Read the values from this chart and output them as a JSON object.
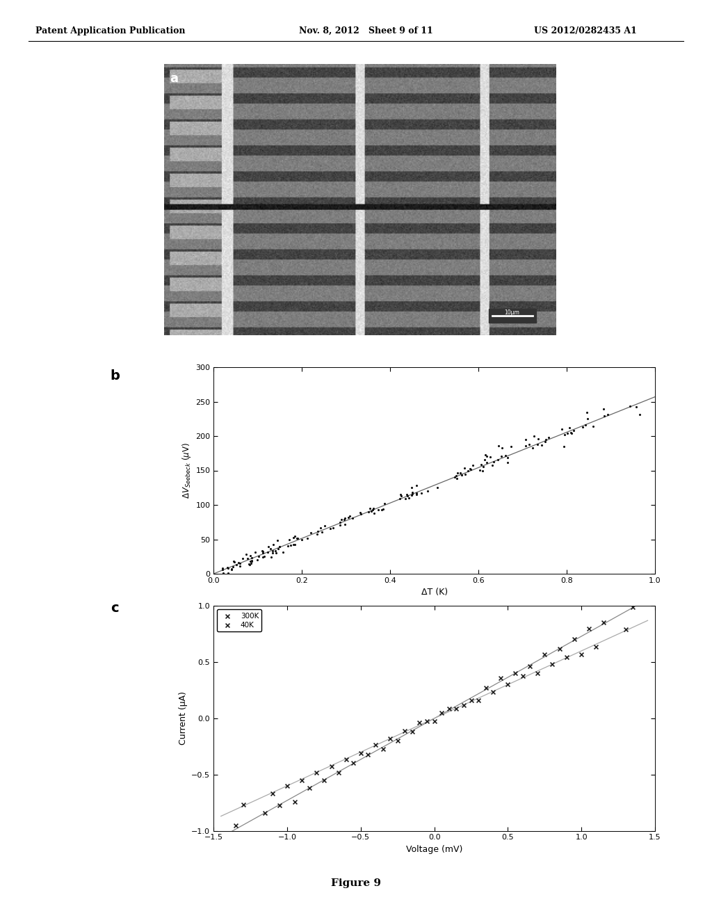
{
  "header_left": "Patent Application Publication",
  "header_mid": "Nov. 8, 2012   Sheet 9 of 11",
  "header_right": "US 2012/0282435 A1",
  "panel_a_label": "a",
  "panel_b_label": "b",
  "panel_c_label": "c",
  "figure_caption": "Figure 9",
  "plot_b": {
    "xlabel": "ΔT (K)",
    "ylabel": "ΔV$_{Seebeck}$ (μV)",
    "xlim": [
      0.0,
      1.0
    ],
    "ylim": [
      0,
      300
    ],
    "xticks": [
      0.0,
      0.2,
      0.4,
      0.6,
      0.8,
      1.0
    ],
    "yticks": [
      0,
      50,
      100,
      150,
      200,
      250,
      300
    ],
    "slope": 257,
    "scatter_color": "#111111",
    "line_color": "#666666"
  },
  "plot_c": {
    "xlabel": "Voltage (mV)",
    "ylabel": "Current (μA)",
    "xlim": [
      -1.5,
      1.5
    ],
    "ylim": [
      -1.0,
      1.0
    ],
    "xticks": [
      -1.5,
      -1.0,
      -0.5,
      0.0,
      0.5,
      1.0,
      1.5
    ],
    "yticks": [
      -1.0,
      -0.5,
      0.0,
      0.5,
      1.0
    ],
    "series_300K_slope": 0.73,
    "series_40K_slope": 0.6,
    "line_color_300K": "#888888",
    "line_color_40K": "#aaaaaa",
    "scatter_color": "#222222"
  },
  "bg_color": "#ffffff",
  "text_color": "#000000"
}
